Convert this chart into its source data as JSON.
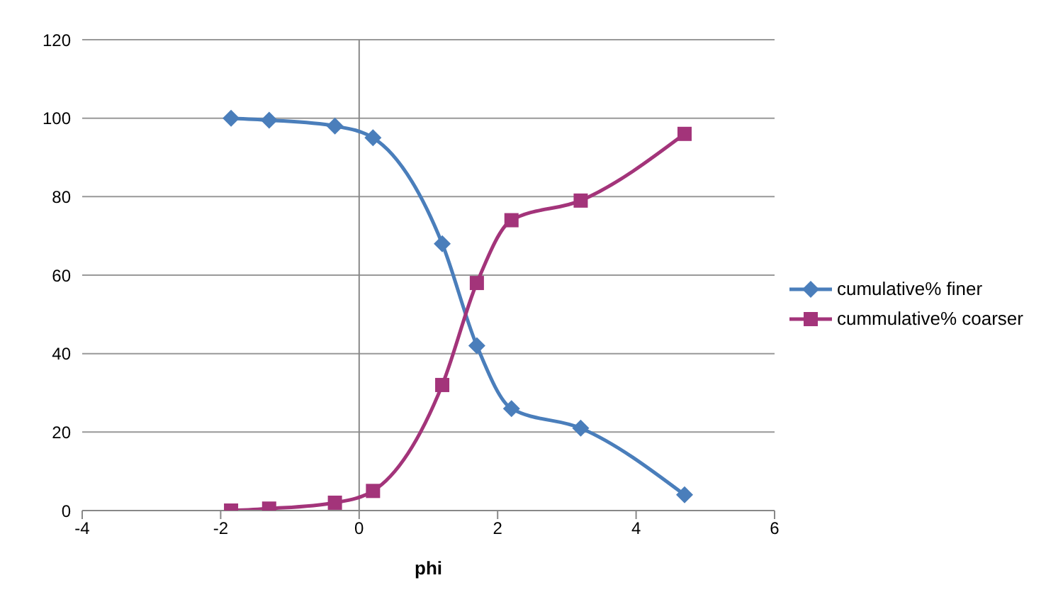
{
  "chart_data": {
    "type": "line",
    "xlabel": "phi",
    "x": [
      -1.85,
      -1.3,
      -0.35,
      0.2,
      1.2,
      1.7,
      2.2,
      3.2,
      4.7
    ],
    "series": [
      {
        "name": "cumulative% finer",
        "color": "#4a7ebb",
        "marker": "diamond",
        "values": [
          100,
          99.5,
          98,
          95,
          68,
          42,
          26,
          21,
          4
        ]
      },
      {
        "name": "cummulative% coarser",
        "color": "#a3347a",
        "marker": "square",
        "values": [
          0,
          0.5,
          2,
          5,
          32,
          58,
          74,
          79,
          96
        ]
      }
    ],
    "xlim": [
      -4,
      6
    ],
    "xticks": [
      -4,
      -2,
      0,
      2,
      4,
      6
    ],
    "ylim": [
      0,
      120
    ],
    "yticks": [
      0,
      20,
      40,
      60,
      80,
      100,
      120
    ],
    "grid": "y",
    "legend": "right"
  }
}
